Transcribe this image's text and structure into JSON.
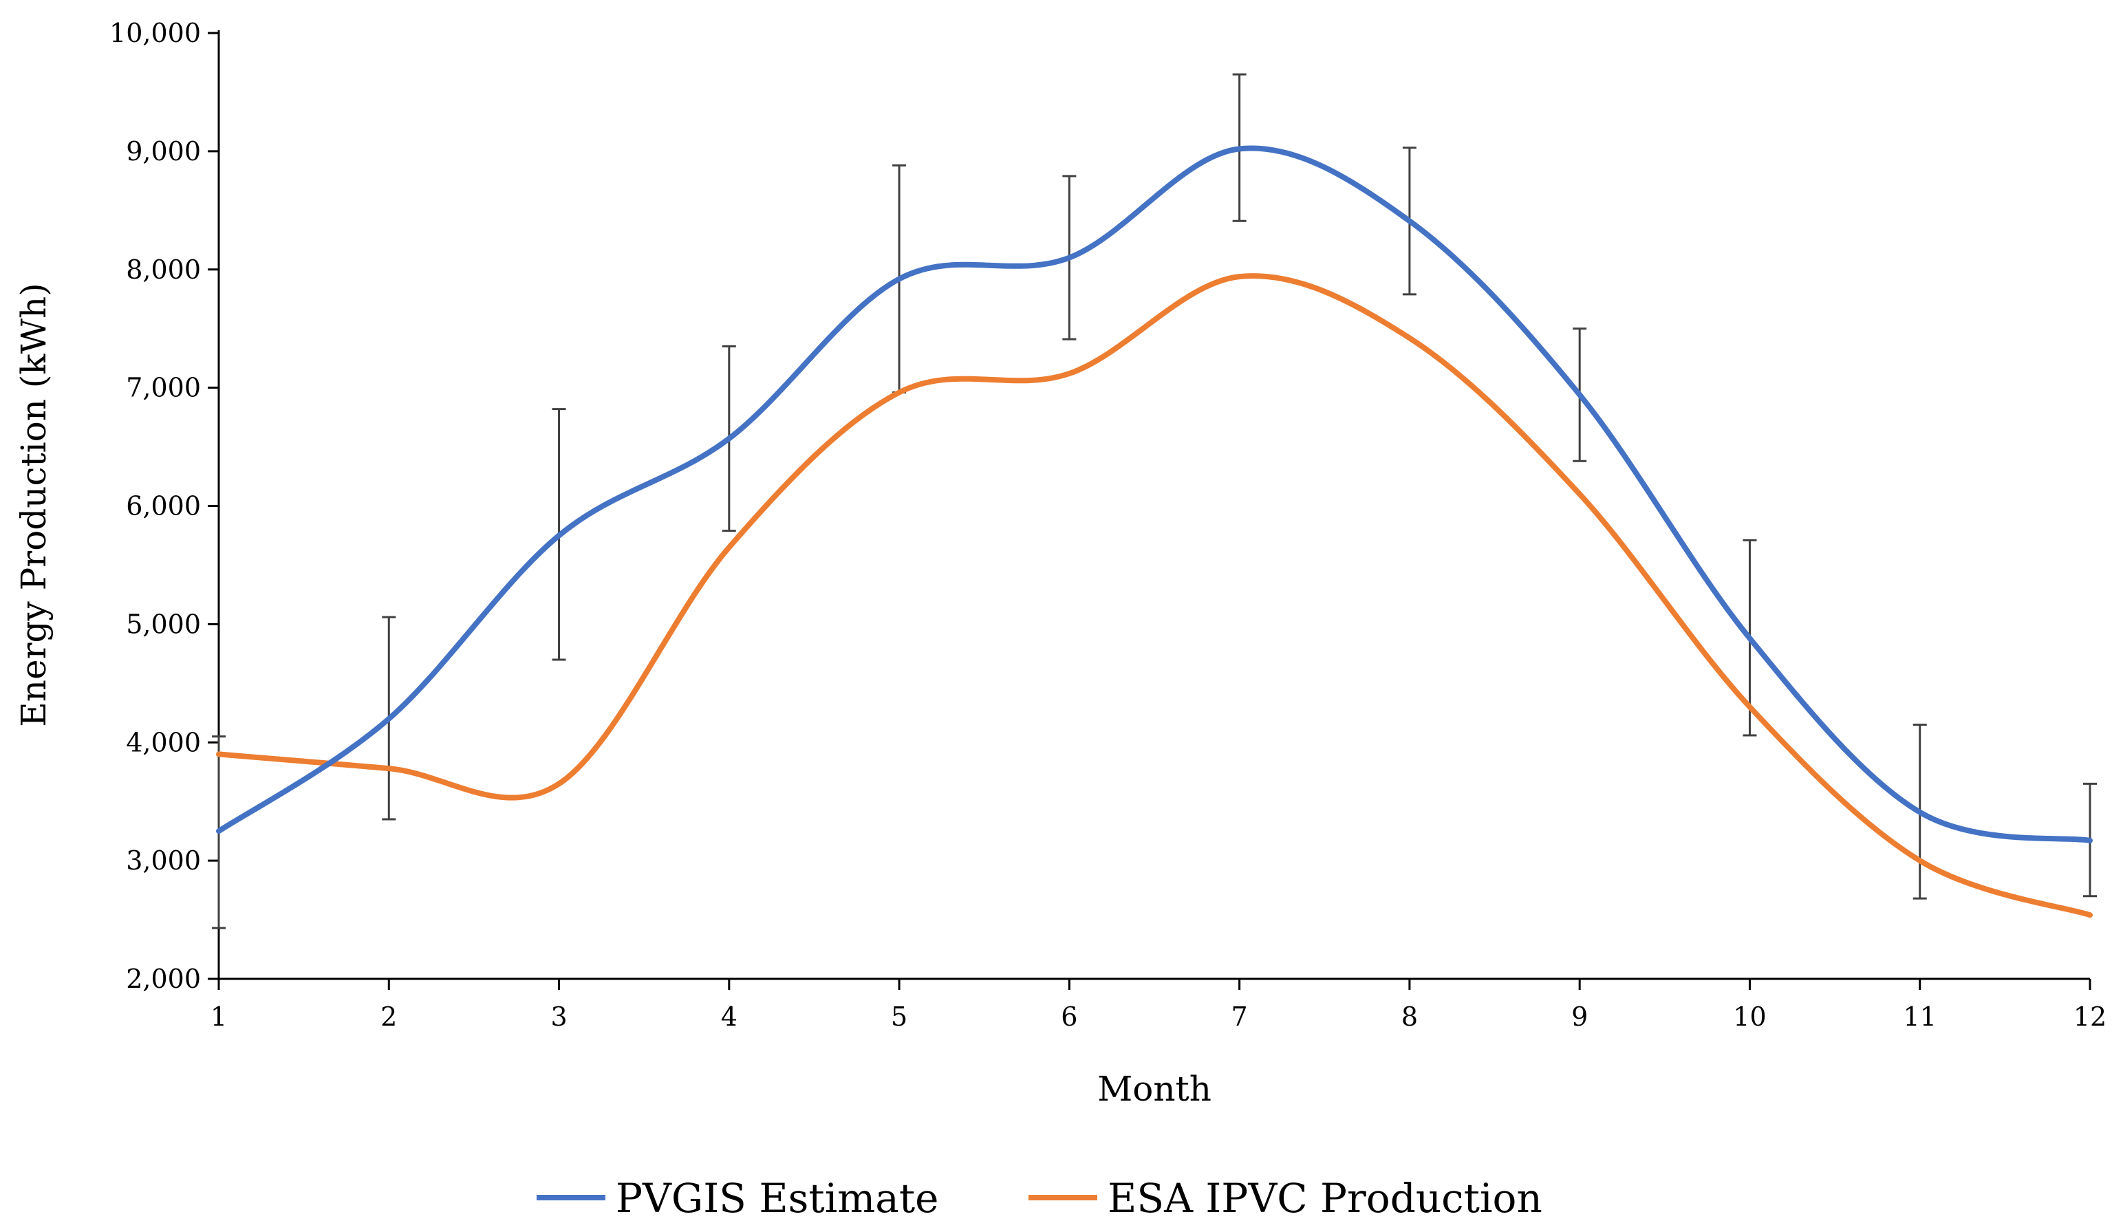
{
  "chart_data": {
    "type": "line",
    "title": "",
    "xlabel": "Month",
    "ylabel": "Energy Production (kWh)",
    "categories": [
      "1",
      "2",
      "3",
      "4",
      "5",
      "6",
      "7",
      "8",
      "9",
      "10",
      "11",
      "12"
    ],
    "x": [
      1,
      2,
      3,
      4,
      5,
      6,
      7,
      8,
      9,
      10,
      11,
      12
    ],
    "xlim": [
      1,
      12
    ],
    "ylim": [
      2000,
      10000
    ],
    "yticks": [
      2000,
      3000,
      4000,
      5000,
      6000,
      7000,
      8000,
      9000,
      10000
    ],
    "ytick_labels": [
      "2,000",
      "3,000",
      "4,000",
      "5,000",
      "6,000",
      "7,000",
      "8,000",
      "9,000",
      "10,000"
    ],
    "grid": false,
    "legend_position": "bottom",
    "smooth": true,
    "series": [
      {
        "name": "PVGIS Estimate",
        "color": "#4472C4",
        "values": [
          3250,
          4200,
          5750,
          6570,
          7920,
          8100,
          9020,
          8410,
          6940,
          4880,
          3410,
          3170
        ],
        "error_bars": {
          "low": [
            2430,
            3350,
            4700,
            5790,
            6960,
            7410,
            8410,
            7790,
            6380,
            4060,
            2680,
            2700
          ],
          "high": [
            4050,
            5060,
            6820,
            7350,
            8880,
            8790,
            9650,
            9030,
            7500,
            5710,
            4150,
            3650
          ]
        }
      },
      {
        "name": "ESA IPVC Production",
        "color": "#ED7D31",
        "values": [
          3900,
          3780,
          3650,
          5650,
          6960,
          7120,
          7940,
          7420,
          6100,
          4300,
          3000,
          2540
        ]
      }
    ]
  }
}
